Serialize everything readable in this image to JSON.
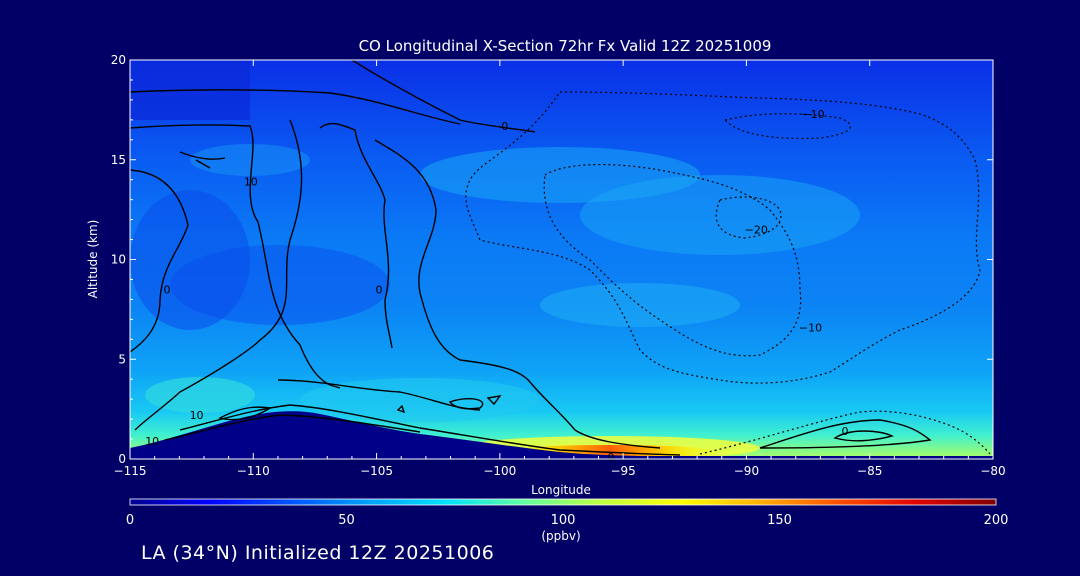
{
  "chart_data": {
    "type": "heatmap",
    "title": "CO Longitudinal X-Section 72hr  Fx Valid 12Z 20251009",
    "xlabel": "Longitude",
    "ylabel": "Altitude (km)",
    "xlim": [
      -115,
      -80
    ],
    "ylim": [
      0,
      20
    ],
    "x_ticks": [
      -115,
      -110,
      -105,
      -100,
      -95,
      -90,
      -85,
      -80
    ],
    "x_tick_labels": [
      "−115",
      "−110",
      "−105",
      "−100",
      "−95",
      "−90",
      "−85",
      "−80"
    ],
    "y_ticks": [
      0,
      5,
      10,
      15,
      20
    ],
    "y_tick_labels": [
      "0",
      "5",
      "10",
      "15",
      "20"
    ],
    "colorbar": {
      "min": 0,
      "max": 200,
      "ticks": [
        0,
        50,
        100,
        150,
        200
      ],
      "tick_labels": [
        "0",
        "50",
        "100",
        "150",
        "200"
      ],
      "units": "(ppbv)",
      "colors": [
        "#00008f",
        "#0000ff",
        "#0050ff",
        "#00a0ff",
        "#00e0ff",
        "#60ffa0",
        "#c0ff40",
        "#ffff00",
        "#ffb000",
        "#ff5000",
        "#e00000",
        "#800000"
      ]
    },
    "contour_labels": [
      {
        "text": "0",
        "lon": -99.8,
        "alt": 16.7
      },
      {
        "text": "10",
        "lon": -110.1,
        "alt": 13.9
      },
      {
        "text": "0",
        "lon": -113.5,
        "alt": 8.5
      },
      {
        "text": "0",
        "lon": -104.9,
        "alt": 8.5
      },
      {
        "text": "10",
        "lon": -112.3,
        "alt": 2.2
      },
      {
        "text": "10",
        "lon": -114.1,
        "alt": 0.9
      },
      {
        "text": "0",
        "lon": -95.5,
        "alt": 0.1
      },
      {
        "text": "0",
        "lon": -86.0,
        "alt": 1.4
      },
      {
        "text": "−10",
        "lon": -87.3,
        "alt": 17.3
      },
      {
        "text": "−20",
        "lon": -89.6,
        "alt": 11.5
      },
      {
        "text": "−10",
        "lon": -87.4,
        "alt": 6.6
      }
    ]
  },
  "footer": "LA (34°N) Initialized 12Z 20251006"
}
